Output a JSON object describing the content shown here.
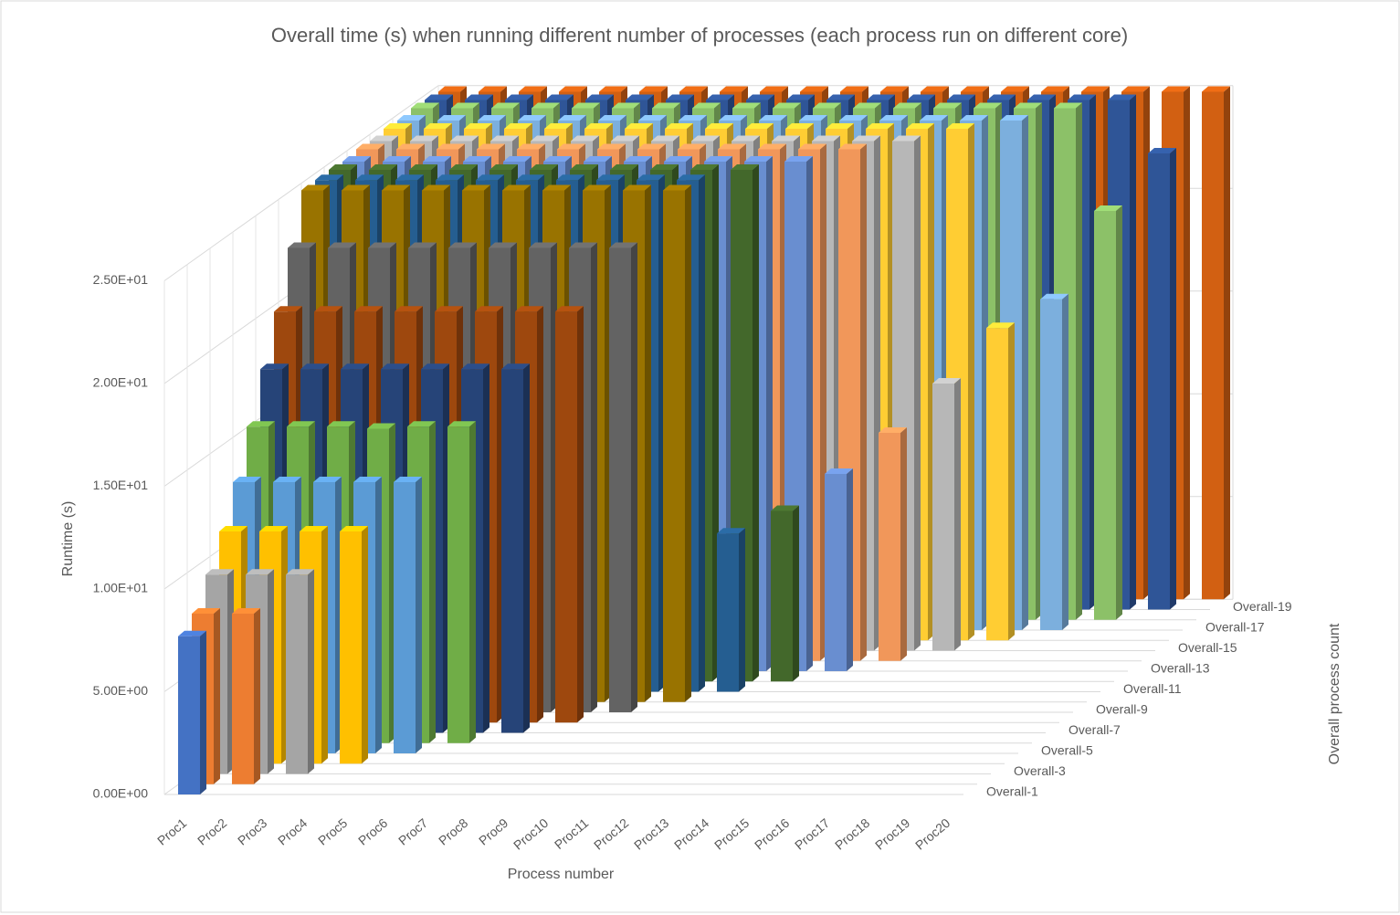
{
  "chart_data": {
    "type": "bar3d",
    "title": "Overall time (s) when running different number of processes (each process run on different core)",
    "x_label": "Process number",
    "y_label": "Runtime (s)",
    "depth_label": "Overall process count",
    "categories": [
      "Proc1",
      "Proc2",
      "Proc3",
      "Proc4",
      "Proc5",
      "Proc6",
      "Proc7",
      "Proc8",
      "Proc9",
      "Proc10",
      "Proc11",
      "Proc12",
      "Proc13",
      "Proc14",
      "Proc15",
      "Proc16",
      "Proc17",
      "Proc18",
      "Proc19",
      "Proc20"
    ],
    "depth_categories": [
      "Overall-1",
      null,
      "Overall-3",
      null,
      "Overall-5",
      null,
      "Overall-7",
      null,
      "Overall-9",
      null,
      "Overall-11",
      null,
      "Overall-13",
      null,
      "Overall-15",
      null,
      "Overall-17",
      null,
      "Overall-19",
      null
    ],
    "ylim": [
      0,
      25
    ],
    "yticks": [
      {
        "value": 0,
        "label": "0.00E+00"
      },
      {
        "value": 5,
        "label": "5.00E+00"
      },
      {
        "value": 10,
        "label": "1.00E+01"
      },
      {
        "value": 15,
        "label": "1.50E+01"
      },
      {
        "value": 20,
        "label": "2.00E+01"
      },
      {
        "value": 25,
        "label": "2.50E+01"
      }
    ],
    "grid": true,
    "series": [
      {
        "color": "#4472c4",
        "values": [
          7.7,
          null,
          null,
          null,
          null,
          null,
          null,
          null,
          null,
          null,
          null,
          null,
          null,
          null,
          null,
          null,
          null,
          null,
          null,
          null
        ]
      },
      {
        "color": "#ed7d31",
        "values": [
          8.3,
          8.3,
          null,
          null,
          null,
          null,
          null,
          null,
          null,
          null,
          null,
          null,
          null,
          null,
          null,
          null,
          null,
          null,
          null,
          null
        ]
      },
      {
        "color": "#a5a5a5",
        "values": [
          9.7,
          9.7,
          9.7,
          null,
          null,
          null,
          null,
          null,
          null,
          null,
          null,
          null,
          null,
          null,
          null,
          null,
          null,
          null,
          null,
          null
        ]
      },
      {
        "color": "#ffc000",
        "values": [
          11.3,
          11.3,
          11.3,
          11.3,
          null,
          null,
          null,
          null,
          null,
          null,
          null,
          null,
          null,
          null,
          null,
          null,
          null,
          null,
          null,
          null
        ]
      },
      {
        "color": "#5b9bd5",
        "values": [
          13.2,
          13.2,
          13.2,
          13.2,
          13.2,
          null,
          null,
          null,
          null,
          null,
          null,
          null,
          null,
          null,
          null,
          null,
          null,
          null,
          null,
          null
        ]
      },
      {
        "color": "#70ad47",
        "values": [
          15.4,
          15.4,
          15.4,
          15.3,
          15.4,
          15.4,
          null,
          null,
          null,
          null,
          null,
          null,
          null,
          null,
          null,
          null,
          null,
          null,
          null,
          null
        ]
      },
      {
        "color": "#264478",
        "values": [
          17.7,
          17.7,
          17.7,
          17.7,
          17.7,
          17.7,
          17.7,
          null,
          null,
          null,
          null,
          null,
          null,
          null,
          null,
          null,
          null,
          null,
          null,
          null
        ]
      },
      {
        "color": "#9e480e",
        "values": [
          20.0,
          20.0,
          20.0,
          20.0,
          20.0,
          20.0,
          20.0,
          20.0,
          null,
          null,
          null,
          null,
          null,
          null,
          null,
          null,
          null,
          null,
          null,
          null
        ]
      },
      {
        "color": "#636363",
        "values": [
          22.6,
          22.6,
          22.6,
          22.6,
          22.6,
          22.6,
          22.6,
          22.6,
          22.6,
          null,
          null,
          null,
          null,
          null,
          null,
          null,
          null,
          null,
          null,
          null
        ]
      },
      {
        "color": "#997300",
        "values": [
          24.9,
          24.9,
          24.9,
          24.9,
          24.9,
          24.9,
          24.9,
          24.9,
          24.9,
          24.9,
          null,
          null,
          null,
          null,
          null,
          null,
          null,
          null,
          null,
          null
        ]
      },
      {
        "color": "#255e91",
        "values": [
          24.9,
          24.9,
          24.9,
          24.9,
          24.9,
          24.9,
          24.9,
          24.9,
          24.9,
          24.9,
          7.7,
          null,
          null,
          null,
          null,
          null,
          null,
          null,
          null,
          null
        ]
      },
      {
        "color": "#43682b",
        "values": [
          24.9,
          24.9,
          24.9,
          24.9,
          24.9,
          24.9,
          24.9,
          24.9,
          24.9,
          24.9,
          24.9,
          8.3,
          null,
          null,
          null,
          null,
          null,
          null,
          null,
          null
        ]
      },
      {
        "color": "#698ed0",
        "values": [
          24.8,
          24.8,
          24.8,
          24.8,
          24.8,
          24.8,
          24.8,
          24.8,
          24.8,
          24.8,
          24.8,
          24.8,
          9.6,
          null,
          null,
          null,
          null,
          null,
          null,
          null
        ]
      },
      {
        "color": "#f1975a",
        "values": [
          24.9,
          24.9,
          24.9,
          24.9,
          24.9,
          24.9,
          24.9,
          24.9,
          24.9,
          24.9,
          24.9,
          24.9,
          24.9,
          11.1,
          null,
          null,
          null,
          null,
          null,
          null
        ]
      },
      {
        "color": "#b7b7b7",
        "values": [
          24.8,
          24.8,
          24.8,
          24.8,
          24.8,
          24.8,
          24.8,
          24.8,
          24.8,
          24.8,
          24.8,
          24.8,
          24.8,
          24.8,
          13.0,
          null,
          null,
          null,
          null,
          null
        ]
      },
      {
        "color": "#ffcd33",
        "values": [
          24.9,
          24.9,
          24.9,
          24.9,
          24.9,
          24.9,
          24.9,
          24.9,
          24.9,
          24.9,
          24.9,
          24.9,
          24.9,
          24.9,
          24.9,
          15.2,
          null,
          null,
          null,
          null
        ]
      },
      {
        "color": "#7cafdd",
        "values": [
          24.8,
          24.8,
          24.8,
          24.8,
          24.8,
          24.8,
          24.8,
          24.8,
          24.8,
          24.8,
          24.8,
          24.8,
          24.8,
          24.8,
          24.8,
          24.8,
          16.1,
          null,
          null,
          null
        ]
      },
      {
        "color": "#8cc168",
        "values": [
          24.9,
          24.9,
          24.9,
          24.9,
          24.9,
          24.9,
          24.9,
          24.9,
          24.9,
          24.9,
          24.9,
          24.9,
          24.9,
          24.9,
          24.9,
          24.9,
          24.9,
          19.9,
          null,
          null
        ]
      },
      {
        "color": "#2f5597",
        "values": [
          24.8,
          24.8,
          24.8,
          24.8,
          24.8,
          24.8,
          24.8,
          24.8,
          24.8,
          24.8,
          24.8,
          24.8,
          24.8,
          24.8,
          24.8,
          24.8,
          24.8,
          24.8,
          22.2,
          null
        ]
      },
      {
        "color": "#d26012",
        "values": [
          24.7,
          24.7,
          24.7,
          24.7,
          24.7,
          24.7,
          24.7,
          24.7,
          24.7,
          24.7,
          24.7,
          24.7,
          24.7,
          24.7,
          24.7,
          24.7,
          24.7,
          24.7,
          24.7,
          24.7
        ]
      }
    ]
  }
}
